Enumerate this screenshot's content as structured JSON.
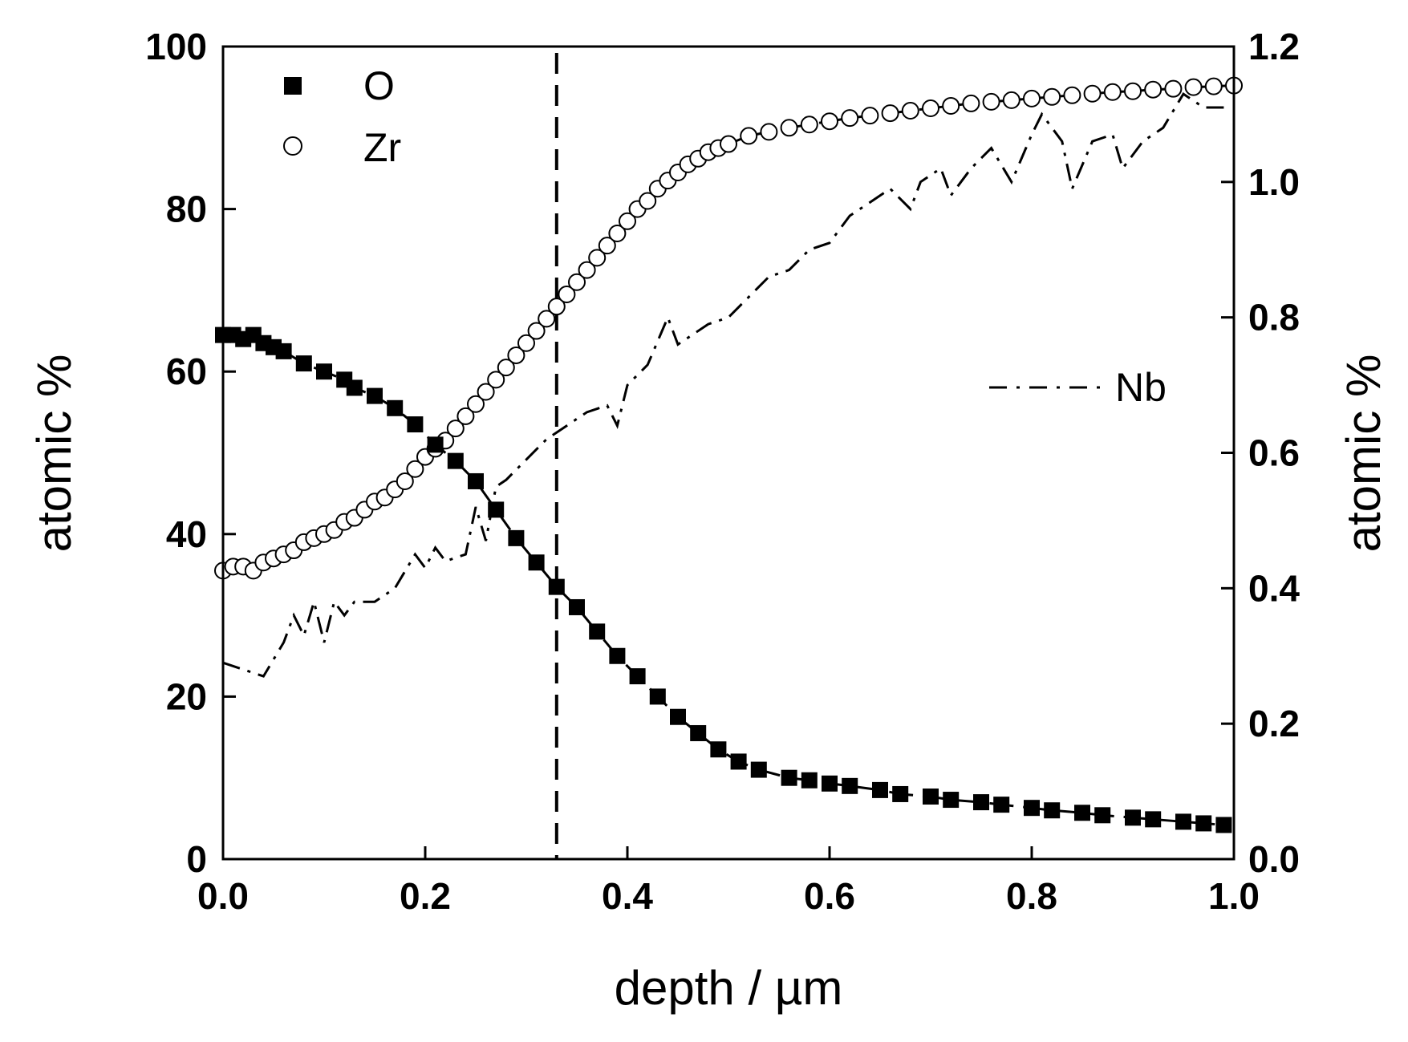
{
  "chart_data": {
    "type": "scatter",
    "title": "",
    "xlabel": "depth / µm",
    "ylabel_left": "atomic %",
    "ylabel_right": "atomic %",
    "xlim": [
      0.0,
      1.0
    ],
    "ylim_left": [
      0,
      100
    ],
    "ylim_right": [
      0.0,
      1.2
    ],
    "x_ticks": [
      "0.0",
      "0.2",
      "0.4",
      "0.6",
      "0.8",
      "1.0"
    ],
    "y_ticks_left": [
      "0",
      "20",
      "40",
      "60",
      "80",
      "100"
    ],
    "y_ticks_right": [
      "0.0",
      "0.2",
      "0.4",
      "0.6",
      "0.8",
      "1.0",
      "1.2"
    ],
    "grid": false,
    "vertical_line_x": 0.33,
    "legend": [
      {
        "label": "O",
        "marker": "filled-square"
      },
      {
        "label": "Zr",
        "marker": "open-circle"
      },
      {
        "label": "Nb",
        "marker": "dash-dot-line"
      }
    ],
    "series": [
      {
        "name": "O",
        "axis": "left",
        "marker": "filled-square",
        "x": [
          0.0,
          0.01,
          0.02,
          0.03,
          0.04,
          0.05,
          0.06,
          0.08,
          0.1,
          0.12,
          0.13,
          0.15,
          0.17,
          0.19,
          0.21,
          0.23,
          0.25,
          0.27,
          0.29,
          0.31,
          0.33,
          0.35,
          0.37,
          0.39,
          0.41,
          0.43,
          0.45,
          0.47,
          0.49,
          0.51,
          0.53,
          0.56,
          0.58,
          0.6,
          0.62,
          0.65,
          0.67,
          0.7,
          0.72,
          0.75,
          0.77,
          0.8,
          0.82,
          0.85,
          0.87,
          0.9,
          0.92,
          0.95,
          0.97,
          0.99
        ],
        "y": [
          64.5,
          64.5,
          64,
          64.5,
          63.5,
          63,
          62.5,
          61,
          60,
          59,
          58,
          57,
          55.5,
          53.5,
          51,
          49,
          46.5,
          43,
          39.5,
          36.5,
          33.5,
          31,
          28,
          25,
          22.5,
          20,
          17.5,
          15.5,
          13.5,
          12,
          11,
          10,
          9.7,
          9.3,
          9,
          8.5,
          8,
          7.7,
          7.3,
          7,
          6.7,
          6.3,
          6,
          5.7,
          5.4,
          5.1,
          4.9,
          4.6,
          4.4,
          4.2
        ]
      },
      {
        "name": "Zr",
        "axis": "left",
        "marker": "open-circle",
        "x": [
          0.0,
          0.01,
          0.02,
          0.03,
          0.04,
          0.05,
          0.06,
          0.07,
          0.08,
          0.09,
          0.1,
          0.11,
          0.12,
          0.13,
          0.14,
          0.15,
          0.16,
          0.17,
          0.18,
          0.19,
          0.2,
          0.21,
          0.22,
          0.23,
          0.24,
          0.25,
          0.26,
          0.27,
          0.28,
          0.29,
          0.3,
          0.31,
          0.32,
          0.33,
          0.34,
          0.35,
          0.36,
          0.37,
          0.38,
          0.39,
          0.4,
          0.41,
          0.42,
          0.43,
          0.44,
          0.45,
          0.46,
          0.47,
          0.48,
          0.49,
          0.5,
          0.52,
          0.54,
          0.56,
          0.58,
          0.6,
          0.62,
          0.64,
          0.66,
          0.68,
          0.7,
          0.72,
          0.74,
          0.76,
          0.78,
          0.8,
          0.82,
          0.84,
          0.86,
          0.88,
          0.9,
          0.92,
          0.94,
          0.96,
          0.98,
          1.0
        ],
        "y": [
          35.5,
          36,
          36,
          35.5,
          36.5,
          37,
          37.5,
          38,
          39,
          39.5,
          40,
          40.5,
          41.5,
          42,
          43,
          44,
          44.5,
          45.5,
          46.5,
          48,
          49.5,
          50.5,
          51.5,
          53,
          54.5,
          56,
          57.5,
          59,
          60.5,
          62,
          63.5,
          65,
          66.5,
          68,
          69.5,
          71,
          72.5,
          74,
          75.5,
          77,
          78.5,
          80,
          81,
          82.5,
          83.5,
          84.5,
          85.5,
          86.2,
          87,
          87.5,
          88,
          89,
          89.5,
          90,
          90.4,
          90.8,
          91.2,
          91.5,
          91.8,
          92.1,
          92.4,
          92.7,
          93,
          93.2,
          93.4,
          93.6,
          93.8,
          94,
          94.2,
          94.4,
          94.5,
          94.7,
          94.8,
          95,
          95.1,
          95.2
        ]
      },
      {
        "name": "Nb",
        "axis": "right",
        "marker": "dash-dot-line",
        "x": [
          0.0,
          0.02,
          0.04,
          0.06,
          0.07,
          0.08,
          0.09,
          0.1,
          0.11,
          0.12,
          0.13,
          0.15,
          0.17,
          0.19,
          0.2,
          0.21,
          0.22,
          0.24,
          0.25,
          0.26,
          0.27,
          0.28,
          0.3,
          0.32,
          0.34,
          0.36,
          0.38,
          0.39,
          0.4,
          0.42,
          0.44,
          0.45,
          0.46,
          0.48,
          0.5,
          0.52,
          0.54,
          0.56,
          0.58,
          0.6,
          0.62,
          0.64,
          0.66,
          0.68,
          0.69,
          0.71,
          0.72,
          0.74,
          0.76,
          0.78,
          0.8,
          0.81,
          0.83,
          0.84,
          0.86,
          0.88,
          0.89,
          0.91,
          0.93,
          0.95,
          0.97,
          0.99
        ],
        "y": [
          0.29,
          0.28,
          0.27,
          0.32,
          0.36,
          0.33,
          0.38,
          0.32,
          0.38,
          0.36,
          0.38,
          0.38,
          0.4,
          0.45,
          0.43,
          0.46,
          0.44,
          0.45,
          0.52,
          0.47,
          0.55,
          0.56,
          0.59,
          0.62,
          0.64,
          0.66,
          0.67,
          0.64,
          0.7,
          0.73,
          0.8,
          0.76,
          0.77,
          0.79,
          0.8,
          0.83,
          0.86,
          0.87,
          0.9,
          0.91,
          0.95,
          0.97,
          0.99,
          0.96,
          1.0,
          1.02,
          0.98,
          1.02,
          1.05,
          1.0,
          1.07,
          1.1,
          1.06,
          0.99,
          1.06,
          1.07,
          1.02,
          1.06,
          1.08,
          1.13,
          1.11,
          1.11
        ]
      }
    ]
  }
}
